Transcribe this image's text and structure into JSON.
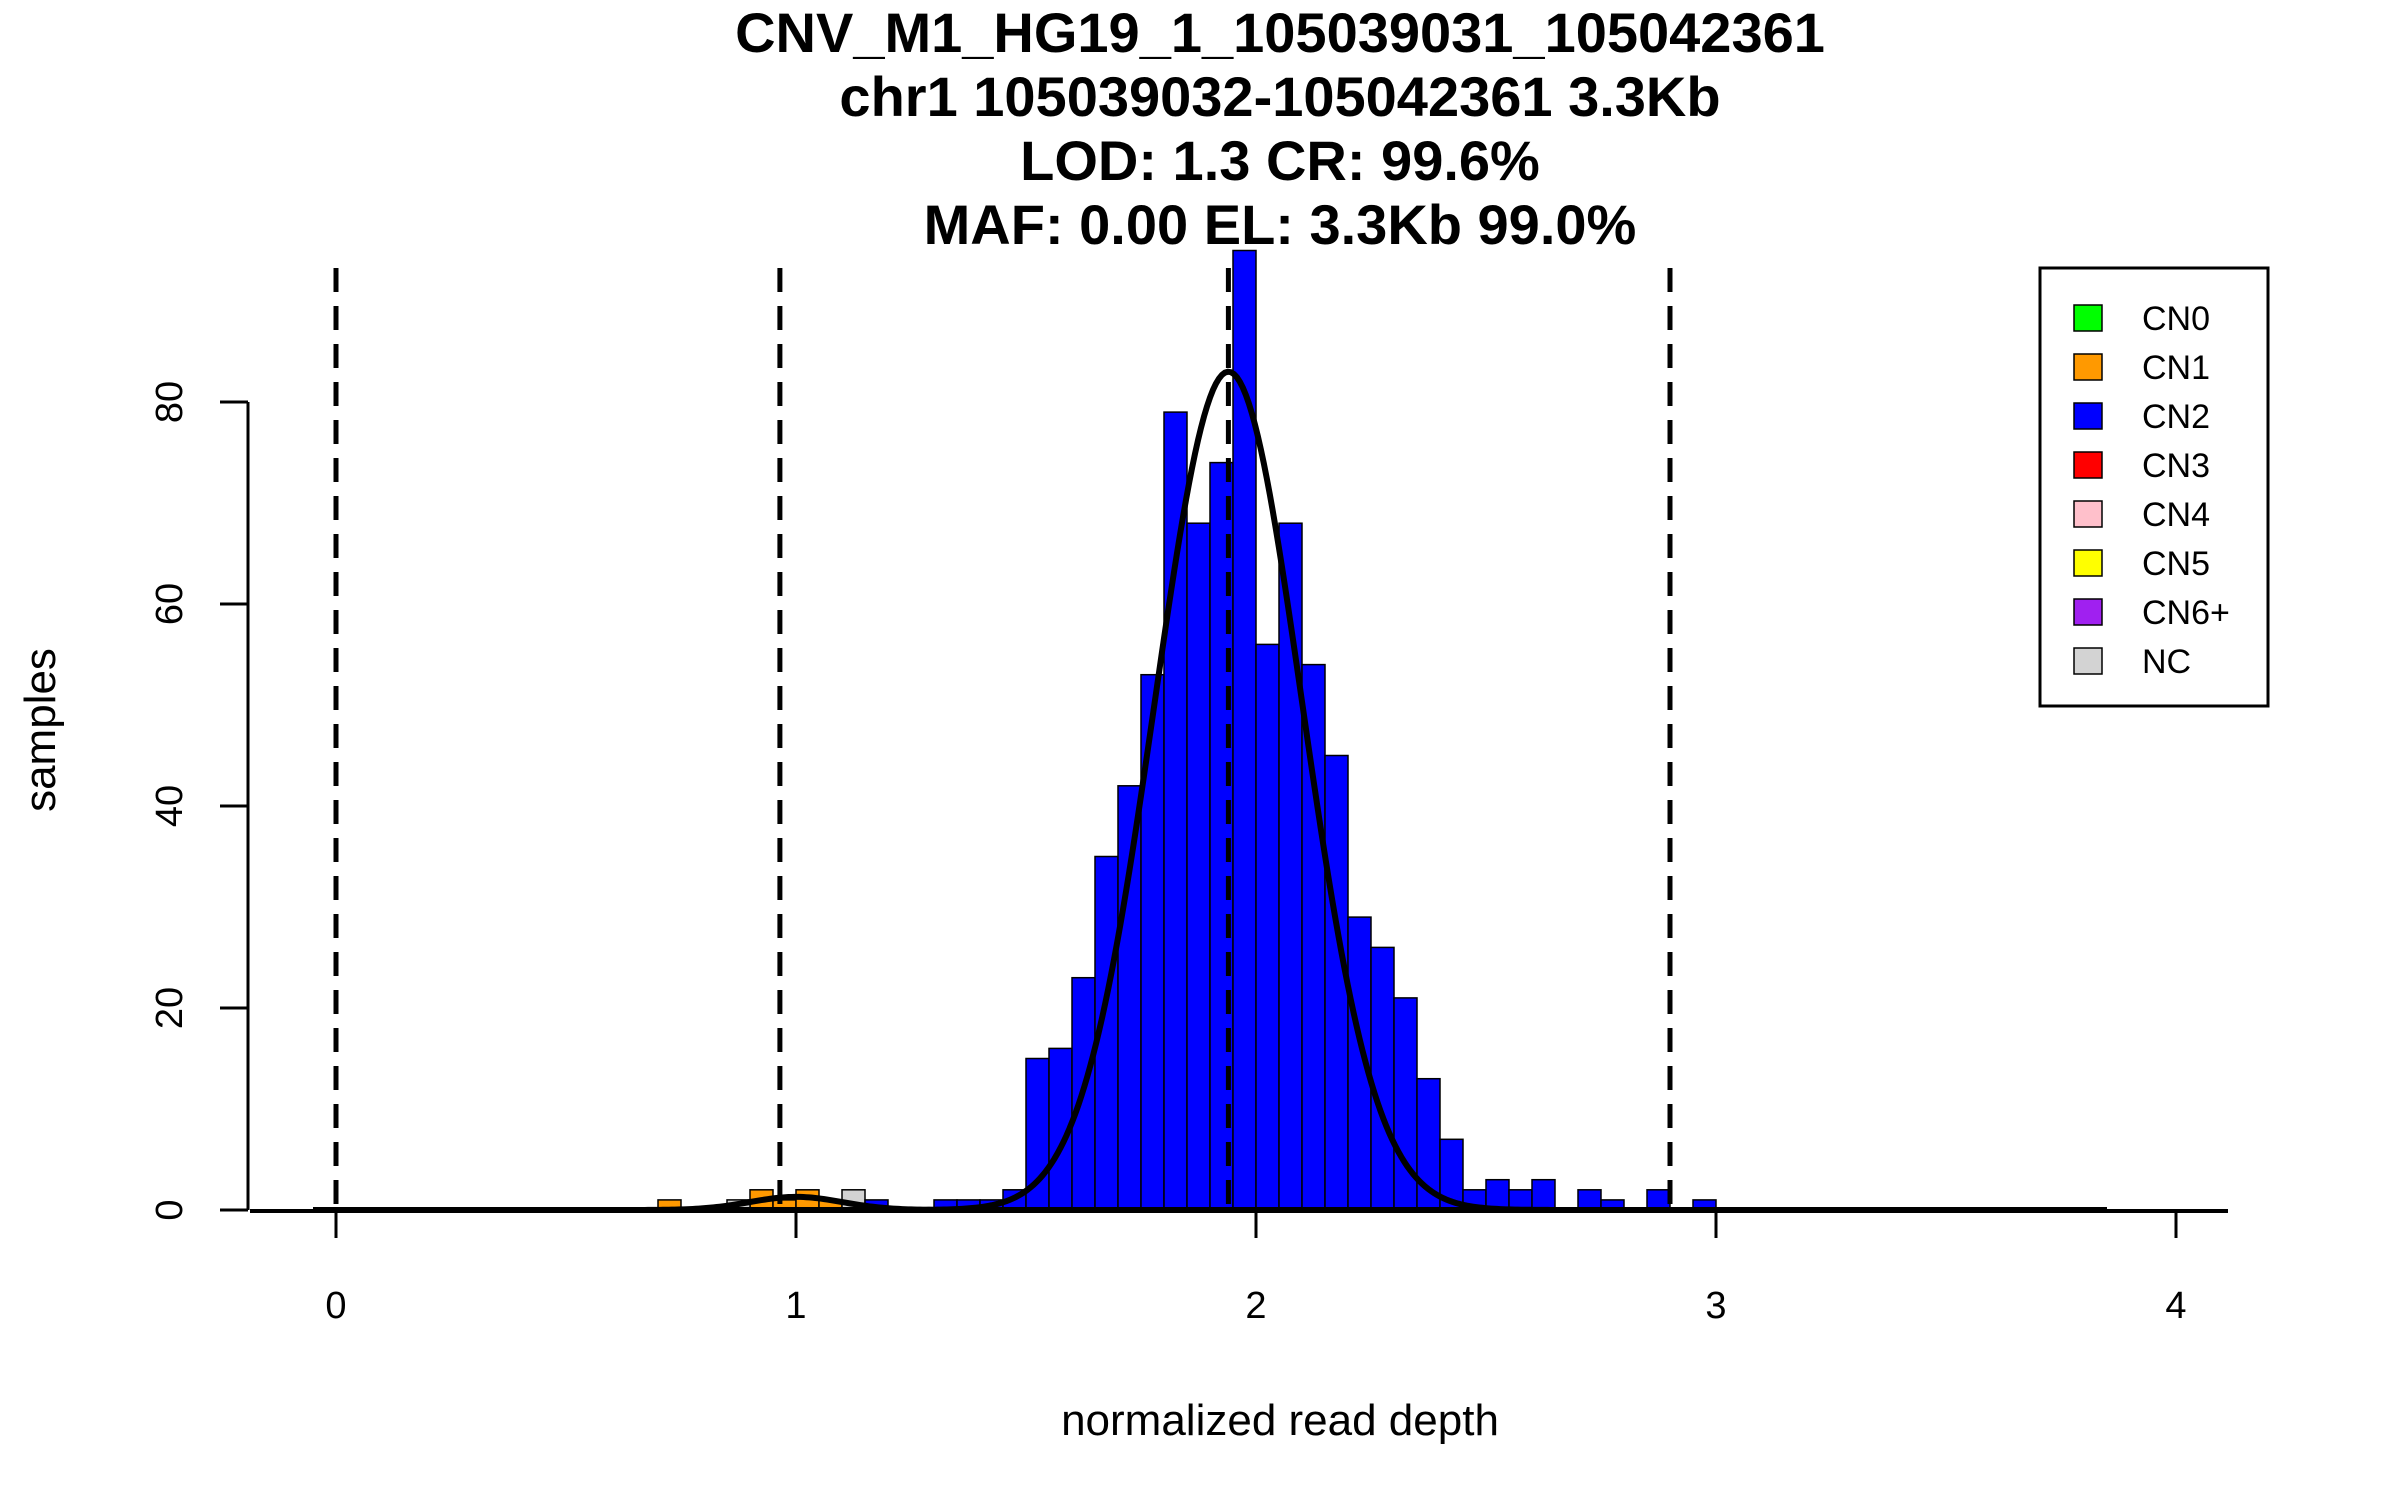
{
  "chart_data": {
    "type": "bar",
    "title_lines": [
      "CNV_M1_HG19_1_105039031_105042361",
      "chr1 105039032-105042361 3.3Kb",
      "LOD: 1.3 CR: 99.6%",
      "MAF: 0.00 EL: 3.3Kb 99.0%"
    ],
    "xlabel": "normalized read depth",
    "ylabel": "samples",
    "xlim": [
      -0.2,
      4.15
    ],
    "ylim": [
      0,
      95
    ],
    "x_ticks": [
      0,
      1,
      2,
      3,
      4
    ],
    "y_ticks": [
      0,
      20,
      40,
      60,
      80
    ],
    "bin_width": 0.05,
    "series": [
      {
        "name": "CN1",
        "color": "#FF9900",
        "bins": [
          {
            "x": 0.7,
            "count": 1
          },
          {
            "x": 0.9,
            "count": 2
          },
          {
            "x": 0.95,
            "count": 1
          },
          {
            "x": 1.0,
            "count": 2
          },
          {
            "x": 1.05,
            "count": 1
          }
        ]
      },
      {
        "name": "NC",
        "color": "#D3D3D3",
        "bins": [
          {
            "x": 0.85,
            "count": 1
          },
          {
            "x": 1.1,
            "count": 2
          }
        ]
      },
      {
        "name": "CN2",
        "color": "#0000FF",
        "bins": [
          {
            "x": 1.15,
            "count": 1
          },
          {
            "x": 1.3,
            "count": 1
          },
          {
            "x": 1.35,
            "count": 1
          },
          {
            "x": 1.4,
            "count": 1
          },
          {
            "x": 1.45,
            "count": 2
          },
          {
            "x": 1.5,
            "count": 15
          },
          {
            "x": 1.55,
            "count": 16
          },
          {
            "x": 1.6,
            "count": 23
          },
          {
            "x": 1.65,
            "count": 35
          },
          {
            "x": 1.7,
            "count": 42
          },
          {
            "x": 1.75,
            "count": 53
          },
          {
            "x": 1.8,
            "count": 79
          },
          {
            "x": 1.85,
            "count": 68
          },
          {
            "x": 1.9,
            "count": 74
          },
          {
            "x": 1.95,
            "count": 95
          },
          {
            "x": 2.0,
            "count": 56
          },
          {
            "x": 2.05,
            "count": 68
          },
          {
            "x": 2.1,
            "count": 54
          },
          {
            "x": 2.15,
            "count": 45
          },
          {
            "x": 2.2,
            "count": 29
          },
          {
            "x": 2.25,
            "count": 26
          },
          {
            "x": 2.3,
            "count": 21
          },
          {
            "x": 2.35,
            "count": 13
          },
          {
            "x": 2.4,
            "count": 7
          },
          {
            "x": 2.45,
            "count": 2
          },
          {
            "x": 2.5,
            "count": 3
          },
          {
            "x": 2.55,
            "count": 2
          },
          {
            "x": 2.6,
            "count": 3
          },
          {
            "x": 2.7,
            "count": 2
          },
          {
            "x": 2.75,
            "count": 1
          },
          {
            "x": 2.85,
            "count": 2
          },
          {
            "x": 2.95,
            "count": 1
          }
        ]
      }
    ],
    "fit_curves": [
      {
        "mean": 1.94,
        "sd": 0.16,
        "peak": 83
      },
      {
        "mean": 1.0,
        "sd": 0.1,
        "peak": 1.3
      }
    ],
    "vlines": [
      0,
      0.965,
      1.94,
      2.9
    ],
    "legend": {
      "position": "top-right",
      "entries": [
        {
          "label": "CN0",
          "color": "#00FF00"
        },
        {
          "label": "CN1",
          "color": "#FF9900"
        },
        {
          "label": "CN2",
          "color": "#0000FF"
        },
        {
          "label": "CN3",
          "color": "#FF0000"
        },
        {
          "label": "CN4",
          "color": "#FFC0CB"
        },
        {
          "label": "CN5",
          "color": "#FFFF00"
        },
        {
          "label": "CN6+",
          "color": "#A020F0"
        },
        {
          "label": "NC",
          "color": "#D3D3D3"
        }
      ]
    },
    "grid": false
  }
}
